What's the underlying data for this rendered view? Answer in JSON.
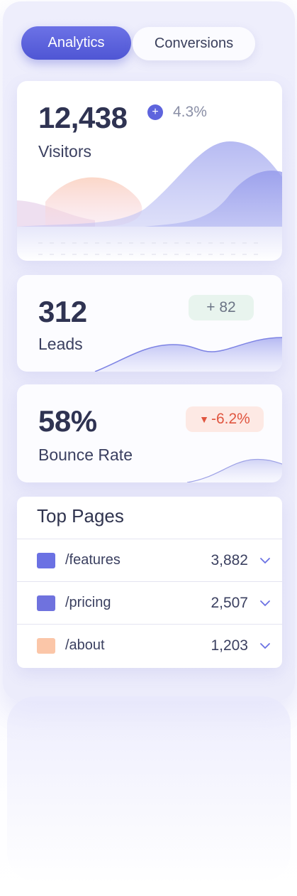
{
  "tabs": [
    {
      "label": "Analytics",
      "active": true
    },
    {
      "label": "Conversions",
      "active": false
    }
  ],
  "visitors": {
    "value": "12,438",
    "label": "Visitors",
    "change": "4.3%",
    "change_icon": "plus-circle-icon"
  },
  "leads": {
    "value": "312",
    "label": "Leads",
    "change": "+ 82"
  },
  "bounce": {
    "value": "58%",
    "label": "Bounce Rate",
    "change": "-6.2%",
    "change_icon": "triangle-down-icon"
  },
  "top_pages": {
    "title": "Top Pages",
    "rows": [
      {
        "label": "/features",
        "value": "3,882",
        "color": "#6b71e3"
      },
      {
        "label": "/pricing",
        "value": "2,507",
        "color": "#6f72de"
      },
      {
        "label": "/about",
        "value": "1,203",
        "color": "#fbc6a8"
      }
    ]
  },
  "colors": {
    "accent": "#5b61dc",
    "positive_bg": "#e8f4ee",
    "negative": "#e0553f"
  }
}
